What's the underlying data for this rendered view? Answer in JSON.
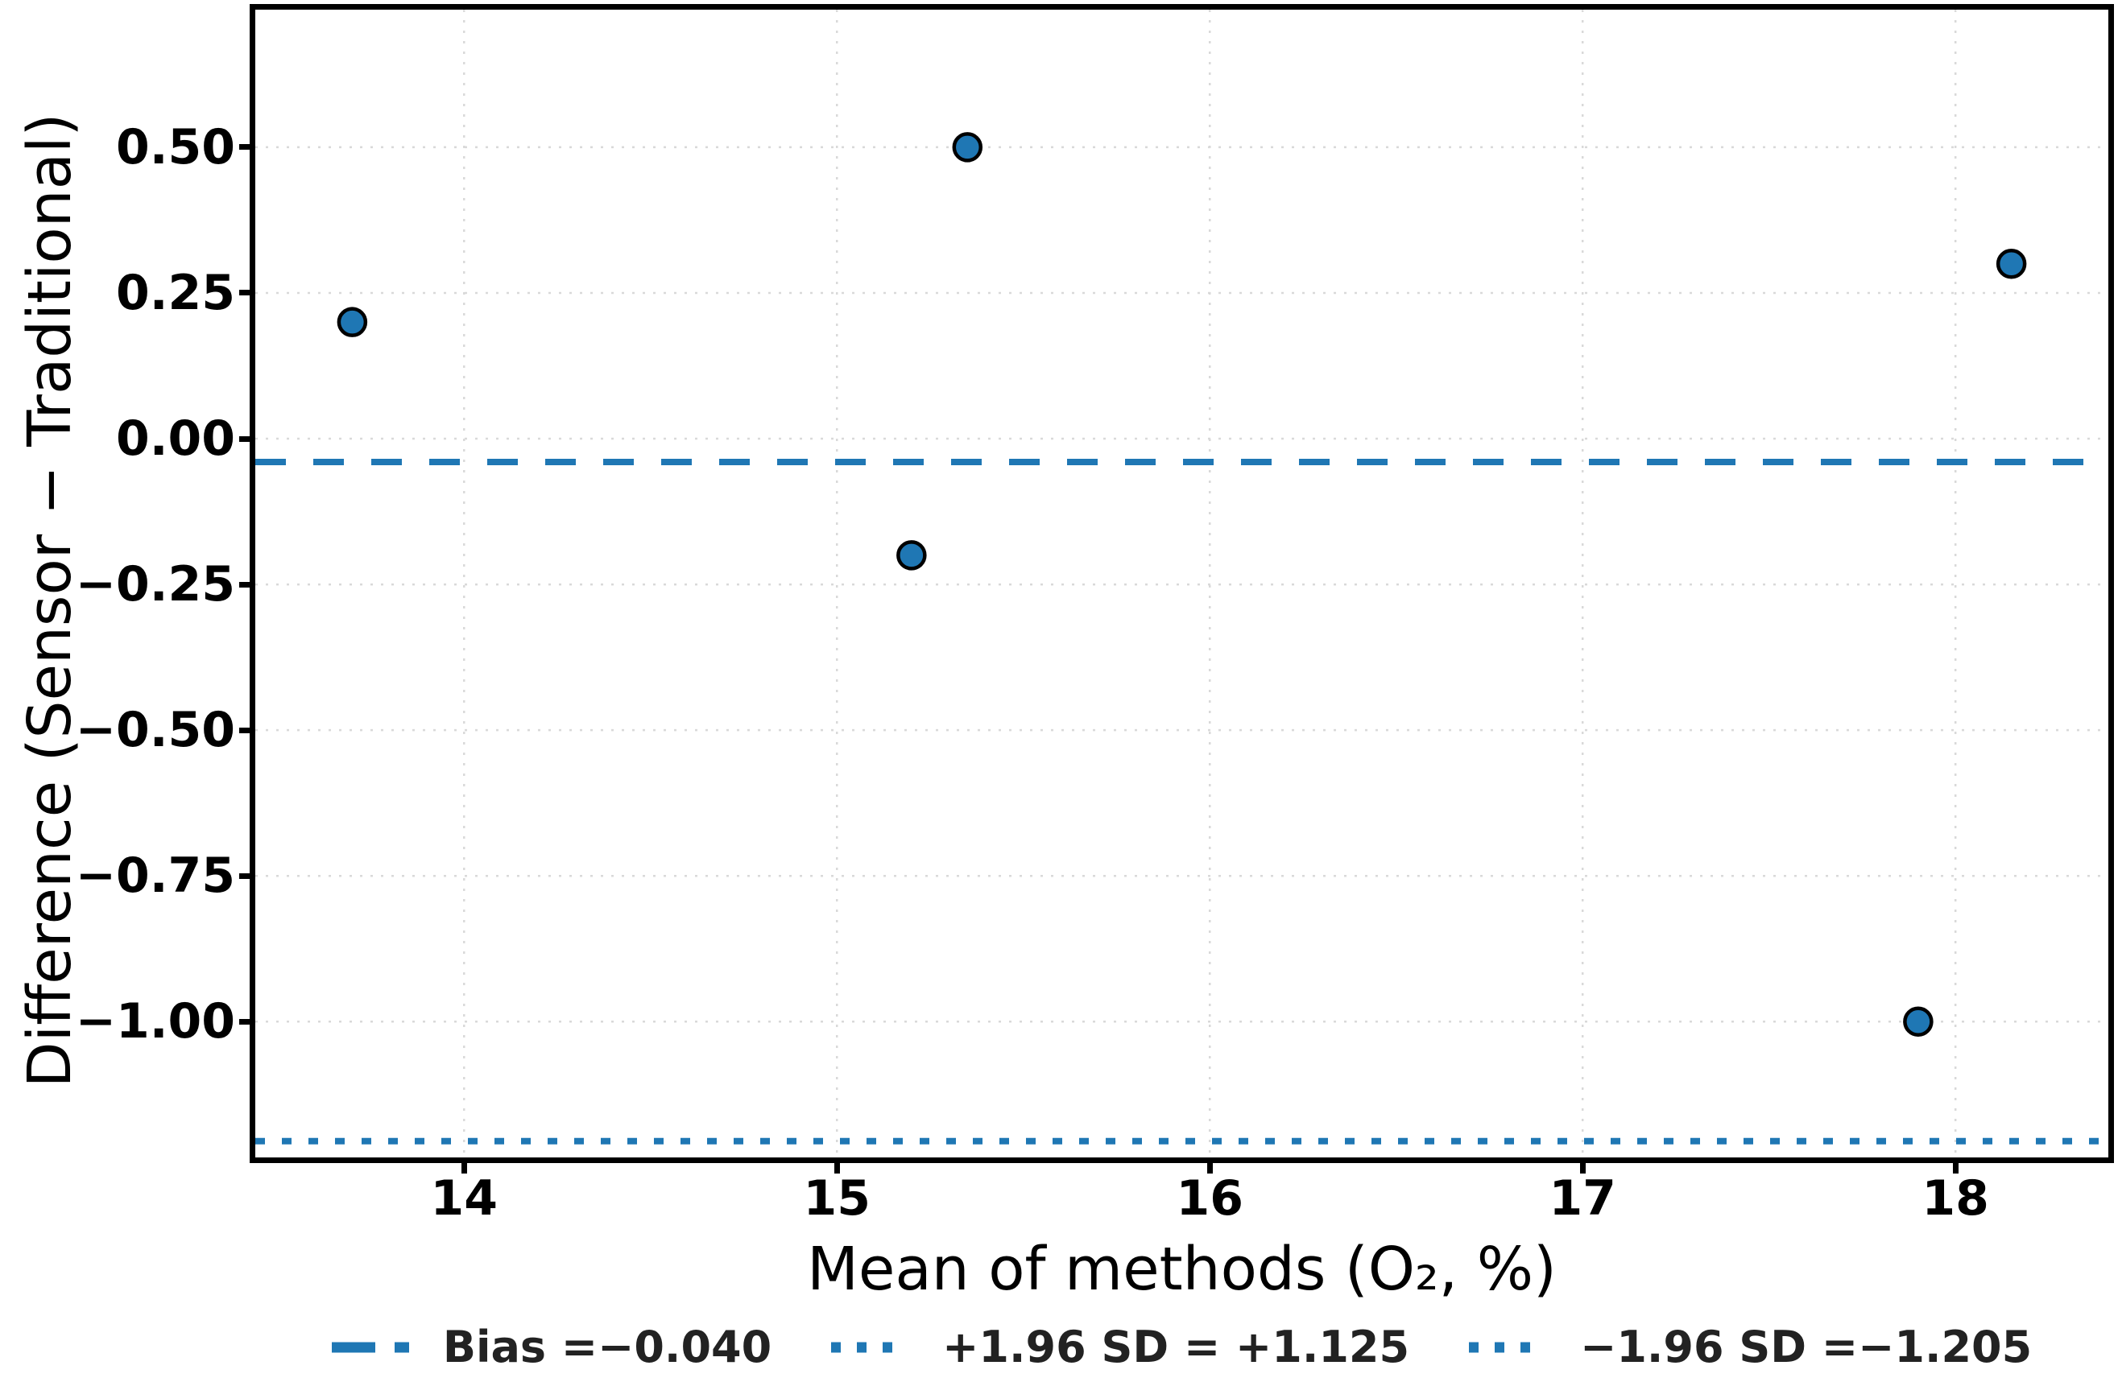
{
  "chart_data": {
    "type": "scatter",
    "title": "",
    "xlabel": "Mean of methods (O₂, %)",
    "ylabel": "Difference (Sensor − Traditional)",
    "points": [
      {
        "mean": 13.7,
        "difference": 0.2
      },
      {
        "mean": 15.2,
        "difference": -0.2
      },
      {
        "mean": 15.35,
        "difference": 0.5
      },
      {
        "mean": 17.9,
        "difference": -1.0
      },
      {
        "mean": 18.15,
        "difference": 0.3
      }
    ],
    "x_ticks": [
      {
        "value": 14,
        "label": "14"
      },
      {
        "value": 15,
        "label": "15"
      },
      {
        "value": 16,
        "label": "16"
      },
      {
        "value": 17,
        "label": "17"
      },
      {
        "value": 18,
        "label": "18"
      }
    ],
    "y_ticks": [
      {
        "value": 0.5,
        "label": "0.50"
      },
      {
        "value": 0.25,
        "label": "0.25"
      },
      {
        "value": 0.0,
        "label": "0.00"
      },
      {
        "value": -0.25,
        "label": "−0.25"
      },
      {
        "value": -0.5,
        "label": "−0.50"
      },
      {
        "value": -0.75,
        "label": "−0.75"
      },
      {
        "value": -1.0,
        "label": "−1.00"
      }
    ],
    "xlim": [
      13.44,
      18.41
    ],
    "ylim": [
      -1.233,
      0.736
    ],
    "grid": true,
    "legend_position": "below x-axis, centered",
    "reference_lines": [
      {
        "name": "bias",
        "value": -0.04,
        "style": "dashed",
        "label": "Bias =−0.040"
      },
      {
        "name": "upper-loa",
        "value": 1.125,
        "style": "dotted",
        "label": "+1.96 SD = +1.125"
      },
      {
        "name": "lower-loa",
        "value": -1.205,
        "style": "dotted",
        "label": "−1.96 SD =−1.205"
      }
    ],
    "colors": {
      "accent": "#1f77b4",
      "marker_fill": "#1f77b4",
      "marker_edge": "#000000",
      "reference_line": "#1f77b4",
      "grid": "#d9d9d9",
      "axis": "#000000",
      "legend_text": "#222222"
    }
  }
}
